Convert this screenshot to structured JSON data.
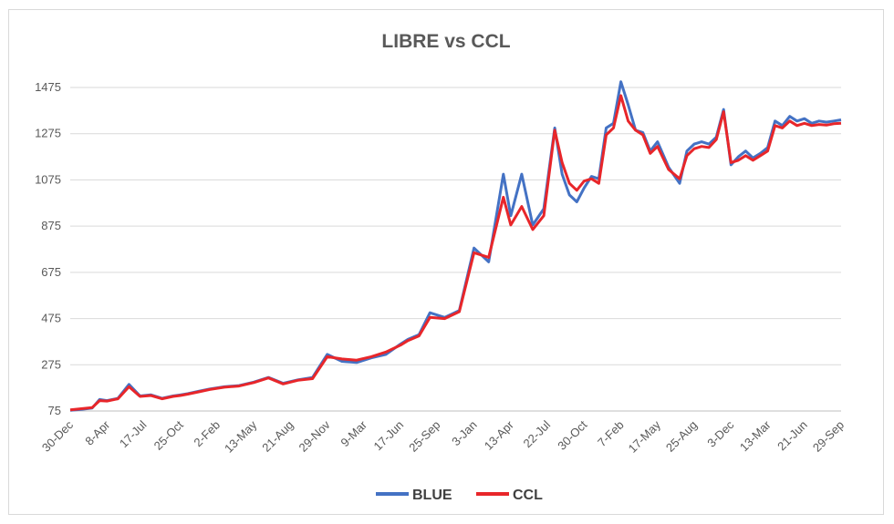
{
  "chart_data": {
    "type": "line",
    "title": "LIBRE vs CCL",
    "xlabel": "",
    "ylabel": "",
    "ylim": [
      75,
      1575
    ],
    "yticks": [
      75,
      275,
      475,
      675,
      875,
      1075,
      1275,
      1475
    ],
    "xticks": [
      "30-Dec",
      "8-Apr",
      "17-Jul",
      "25-Oct",
      "2-Feb",
      "13-May",
      "21-Aug",
      "29-Nov",
      "9-Mar",
      "17-Jun",
      "25-Sep",
      "3-Jan",
      "13-Apr",
      "22-Jul",
      "30-Oct",
      "7-Feb",
      "17-May",
      "25-Aug",
      "3-Dec",
      "13-Mar",
      "21-Jun",
      "29-Sep"
    ],
    "grid": true,
    "legend": "bottom",
    "x_index_note_hidden": false,
    "series": [
      {
        "name": "BLUE",
        "color": "#4472C4",
        "x": [
          0,
          0.3,
          0.6,
          0.8,
          1.0,
          1.3,
          1.6,
          1.9,
          2.2,
          2.5,
          2.8,
          3.0,
          3.2,
          3.5,
          3.8,
          4.2,
          4.6,
          5.0,
          5.4,
          5.8,
          6.2,
          6.6,
          7.0,
          7.4,
          7.8,
          8.2,
          8.6,
          9.0,
          9.2,
          9.5,
          9.8,
          10.2,
          10.6,
          11.0,
          11.4,
          11.8,
          12.0,
          12.3,
          12.6,
          12.9,
          13.2,
          13.4,
          13.6,
          13.8,
          14.0,
          14.2,
          14.4,
          14.6,
          14.8,
          15.0,
          15.2,
          15.4,
          15.6,
          15.8,
          16.0,
          16.3,
          16.6,
          16.8,
          17.0,
          17.2,
          17.4,
          17.6,
          17.8,
          18.0,
          18.2,
          18.4,
          18.6,
          18.8,
          19.0,
          19.2,
          19.4,
          19.6,
          19.8,
          20.0,
          20.2,
          20.4,
          20.6,
          20.8,
          21.0
        ],
        "values": [
          78,
          82,
          88,
          125,
          120,
          130,
          190,
          140,
          145,
          130,
          140,
          145,
          150,
          160,
          170,
          180,
          185,
          200,
          220,
          195,
          210,
          220,
          320,
          290,
          285,
          305,
          320,
          365,
          385,
          405,
          500,
          480,
          510,
          780,
          720,
          1100,
          920,
          1100,
          880,
          950,
          1300,
          1100,
          1010,
          980,
          1040,
          1090,
          1080,
          1300,
          1320,
          1500,
          1400,
          1290,
          1280,
          1200,
          1240,
          1130,
          1060,
          1200,
          1230,
          1240,
          1230,
          1260,
          1380,
          1140,
          1175,
          1200,
          1170,
          1190,
          1215,
          1330,
          1310,
          1350,
          1330,
          1340,
          1320,
          1330,
          1325,
          1330,
          1335
        ]
      },
      {
        "name": "CCL",
        "color": "#E8262A",
        "x": [
          0,
          0.3,
          0.6,
          0.8,
          1.0,
          1.3,
          1.6,
          1.9,
          2.2,
          2.5,
          2.8,
          3.0,
          3.2,
          3.5,
          3.8,
          4.2,
          4.6,
          5.0,
          5.4,
          5.8,
          6.2,
          6.6,
          7.0,
          7.4,
          7.8,
          8.2,
          8.6,
          9.0,
          9.2,
          9.5,
          9.8,
          10.2,
          10.6,
          11.0,
          11.4,
          11.8,
          12.0,
          12.3,
          12.6,
          12.9,
          13.2,
          13.4,
          13.6,
          13.8,
          14.0,
          14.2,
          14.4,
          14.6,
          14.8,
          15.0,
          15.2,
          15.4,
          15.6,
          15.8,
          16.0,
          16.3,
          16.6,
          16.8,
          17.0,
          17.2,
          17.4,
          17.6,
          17.8,
          18.0,
          18.2,
          18.4,
          18.6,
          18.8,
          19.0,
          19.2,
          19.4,
          19.6,
          19.8,
          20.0,
          20.2,
          20.4,
          20.6,
          20.8,
          21.0
        ],
        "values": [
          80,
          85,
          90,
          120,
          118,
          128,
          180,
          138,
          142,
          128,
          138,
          142,
          148,
          158,
          168,
          178,
          183,
          198,
          218,
          192,
          208,
          215,
          310,
          300,
          295,
          310,
          330,
          360,
          380,
          400,
          480,
          475,
          505,
          760,
          740,
          1000,
          880,
          960,
          860,
          920,
          1290,
          1150,
          1060,
          1030,
          1070,
          1080,
          1060,
          1270,
          1300,
          1440,
          1330,
          1290,
          1270,
          1190,
          1220,
          1120,
          1080,
          1180,
          1210,
          1220,
          1215,
          1250,
          1370,
          1150,
          1160,
          1180,
          1160,
          1180,
          1200,
          1310,
          1300,
          1330,
          1310,
          1320,
          1310,
          1315,
          1312,
          1318,
          1320
        ]
      }
    ]
  }
}
